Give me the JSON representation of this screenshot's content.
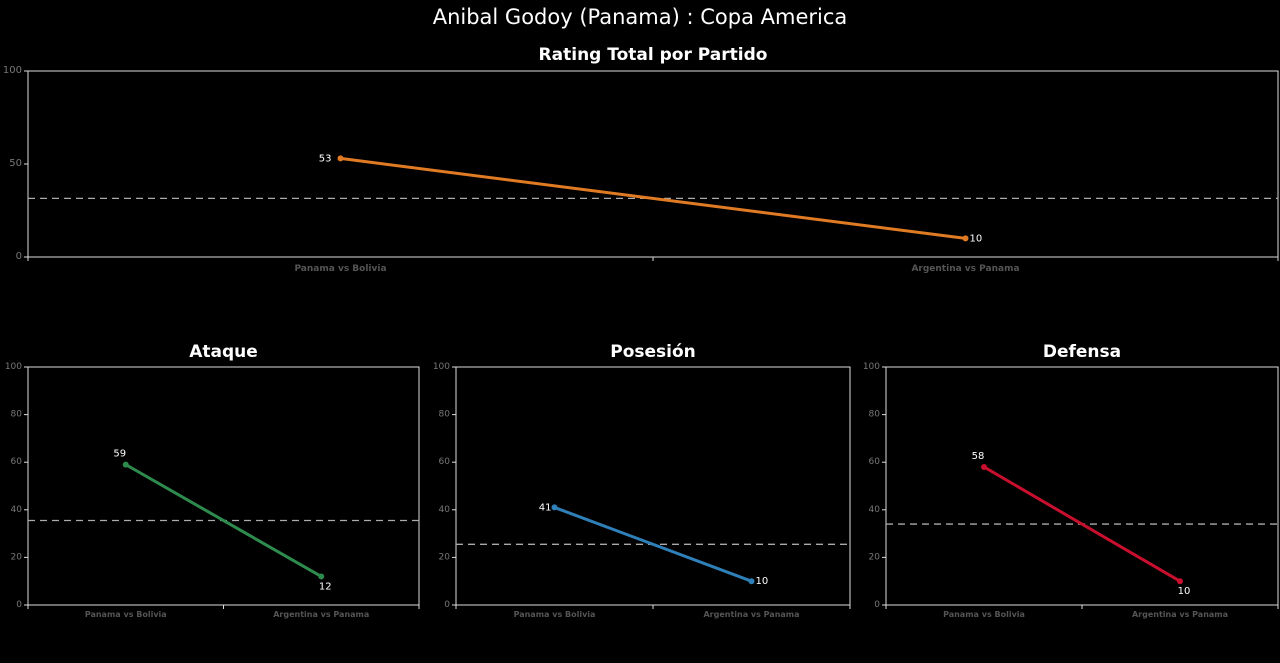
{
  "title": "Anibal Godoy (Panama) :  Copa  America",
  "chart_data": [
    {
      "type": "line",
      "title": "Rating Total por Partido",
      "categories": [
        "Panama vs Bolivia",
        "Argentina vs Panama"
      ],
      "values": [
        53,
        10
      ],
      "data_labels": [
        "53",
        "10"
      ],
      "ylim": [
        0,
        100
      ],
      "yticks": [
        0,
        50,
        100
      ],
      "reference_line": 31.5,
      "color": "#e07b24",
      "grid": false
    },
    {
      "type": "line",
      "title": "Ataque",
      "categories": [
        "Panama vs Bolivia",
        "Argentina vs Panama"
      ],
      "values": [
        59,
        12
      ],
      "data_labels": [
        "59",
        "12"
      ],
      "ylim": [
        0,
        100
      ],
      "yticks": [
        0,
        20,
        40,
        60,
        80,
        100
      ],
      "reference_line": 35.5,
      "color": "#2e8b4e",
      "grid": false
    },
    {
      "type": "line",
      "title": "Posesión",
      "categories": [
        "Panama vs Bolivia",
        "Argentina vs Panama"
      ],
      "values": [
        41,
        10
      ],
      "data_labels": [
        "41",
        "10"
      ],
      "ylim": [
        0,
        100
      ],
      "yticks": [
        0,
        20,
        40,
        60,
        80,
        100
      ],
      "reference_line": 25.5,
      "color": "#2f7fb8",
      "grid": false
    },
    {
      "type": "line",
      "title": "Defensa",
      "categories": [
        "Panama vs Bolivia",
        "Argentina vs Panama"
      ],
      "values": [
        58,
        10
      ],
      "data_labels": [
        "58",
        "10"
      ],
      "ylim": [
        0,
        100
      ],
      "yticks": [
        0,
        20,
        40,
        60,
        80,
        100
      ],
      "reference_line": 34,
      "color": "#c8102e",
      "grid": false
    }
  ]
}
